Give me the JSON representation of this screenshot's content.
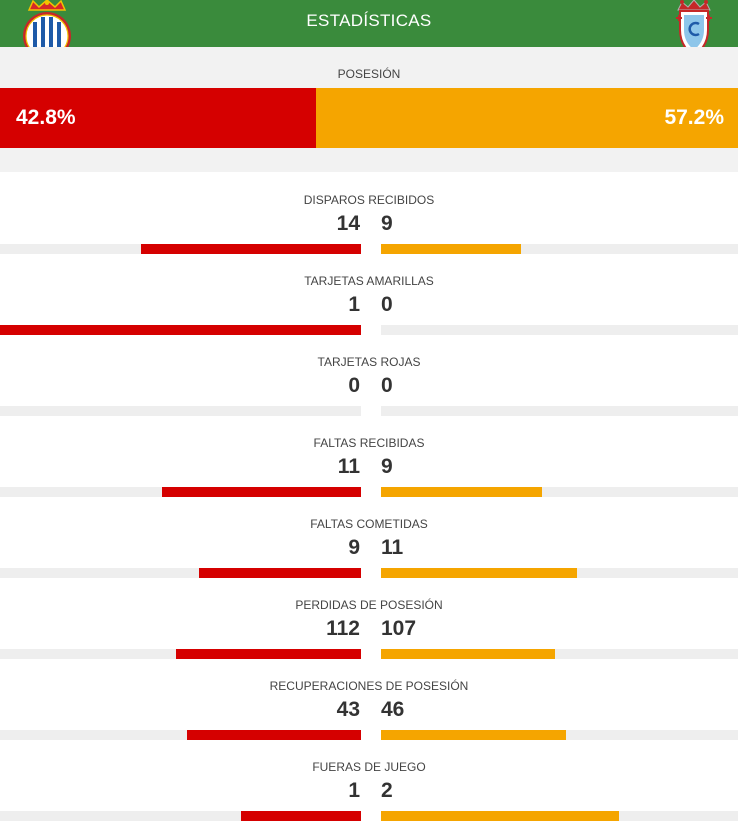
{
  "header": {
    "title": "ESTADÍSTICAS",
    "home_crest_icon": "espanyol-crest-icon",
    "away_crest_icon": "celta-crest-icon"
  },
  "colors": {
    "header_bg": "#3a8b3c",
    "home": "#d50000",
    "away": "#f5a500"
  },
  "possession": {
    "label": "POSESIÓN",
    "home": "42.8%",
    "away": "57.2%",
    "home_value": 42.8,
    "away_value": 57.2
  },
  "stats": [
    {
      "label": "DISPAROS RECIBIDOS",
      "home": "14",
      "away": "9"
    },
    {
      "label": "TARJETAS AMARILLAS",
      "home": "1",
      "away": "0"
    },
    {
      "label": "TARJETAS ROJAS",
      "home": "0",
      "away": "0"
    },
    {
      "label": "FALTAS RECIBIDAS",
      "home": "11",
      "away": "9"
    },
    {
      "label": "FALTAS COMETIDAS",
      "home": "9",
      "away": "11"
    },
    {
      "label": "PERDIDAS DE POSESIÓN",
      "home": "112",
      "away": "107"
    },
    {
      "label": "RECUPERACIONES DE POSESIÓN",
      "home": "43",
      "away": "46"
    },
    {
      "label": "FUERAS DE JUEGO",
      "home": "1",
      "away": "2"
    }
  ]
}
